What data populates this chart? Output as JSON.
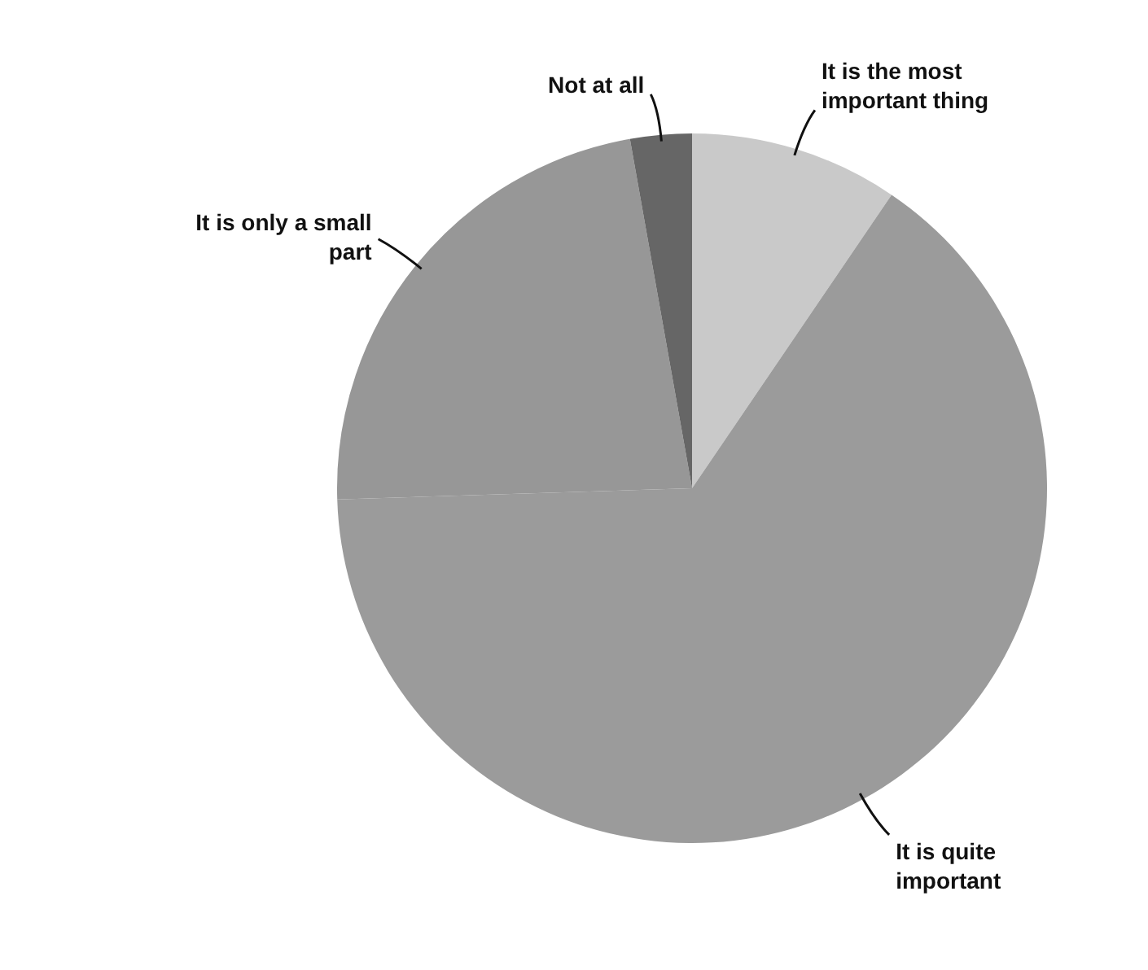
{
  "chart_data": {
    "type": "pie",
    "categories": [
      "It is the most important thing",
      "It is quite important",
      "It is only a small part",
      "Not at all"
    ],
    "values": [
      9.5,
      65,
      22.7,
      2.8
    ],
    "colors": [
      "#c9c9c9",
      "#9b9b9b",
      "#979797",
      "#666666"
    ],
    "legend": false
  }
}
